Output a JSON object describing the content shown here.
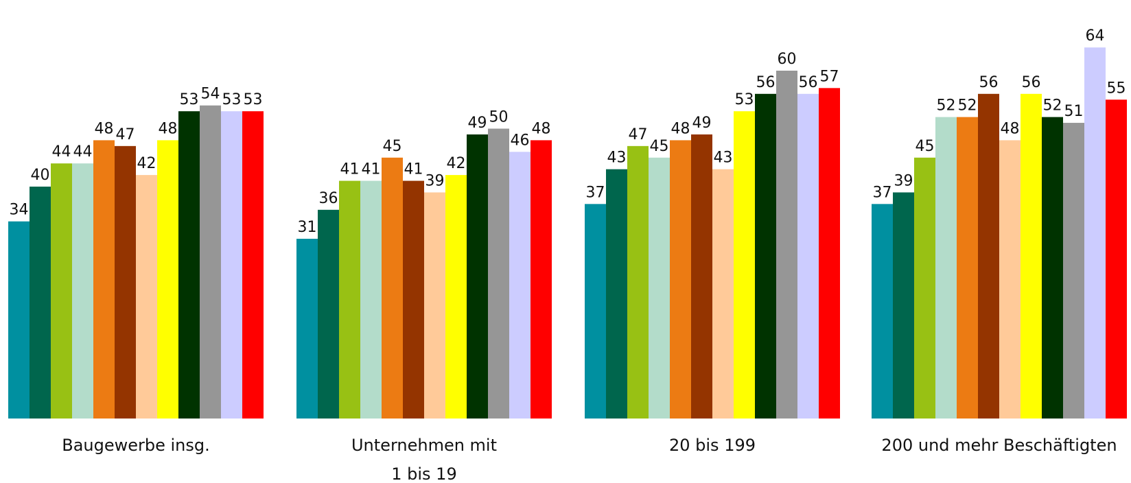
{
  "chart_data": {
    "type": "bar",
    "categories": [
      [
        "Baugewerbe insg."
      ],
      [
        "Unternehmen mit",
        "1 bis 19"
      ],
      [
        "20 bis 199"
      ],
      [
        "200 und mehr Beschäftigten"
      ]
    ],
    "series": [
      {
        "values": [
          34,
          31,
          37,
          37
        ],
        "color": "#0090A0"
      },
      {
        "values": [
          40,
          36,
          43,
          39
        ],
        "color": "#00664D"
      },
      {
        "values": [
          44,
          41,
          47,
          45
        ],
        "color": "#98C114"
      },
      {
        "values": [
          44,
          41,
          45,
          52
        ],
        "color": "#B3DCCA"
      },
      {
        "values": [
          48,
          45,
          48,
          52
        ],
        "color": "#EC7B13"
      },
      {
        "values": [
          47,
          41,
          49,
          56
        ],
        "color": "#943400"
      },
      {
        "values": [
          42,
          39,
          43,
          48
        ],
        "color": "#FFCA99"
      },
      {
        "values": [
          48,
          42,
          53,
          56
        ],
        "color": "#FFFF00"
      },
      {
        "values": [
          53,
          49,
          56,
          52
        ],
        "color": "#003300"
      },
      {
        "values": [
          54,
          50,
          60,
          51
        ],
        "color": "#969696"
      },
      {
        "values": [
          53,
          46,
          56,
          64
        ],
        "color": "#CCCCFF"
      },
      {
        "values": [
          53,
          48,
          57,
          55
        ],
        "color": "#FF0000"
      }
    ],
    "ylim": [
      0,
      64
    ],
    "grid": false,
    "legend": "none",
    "data_labels": true
  }
}
